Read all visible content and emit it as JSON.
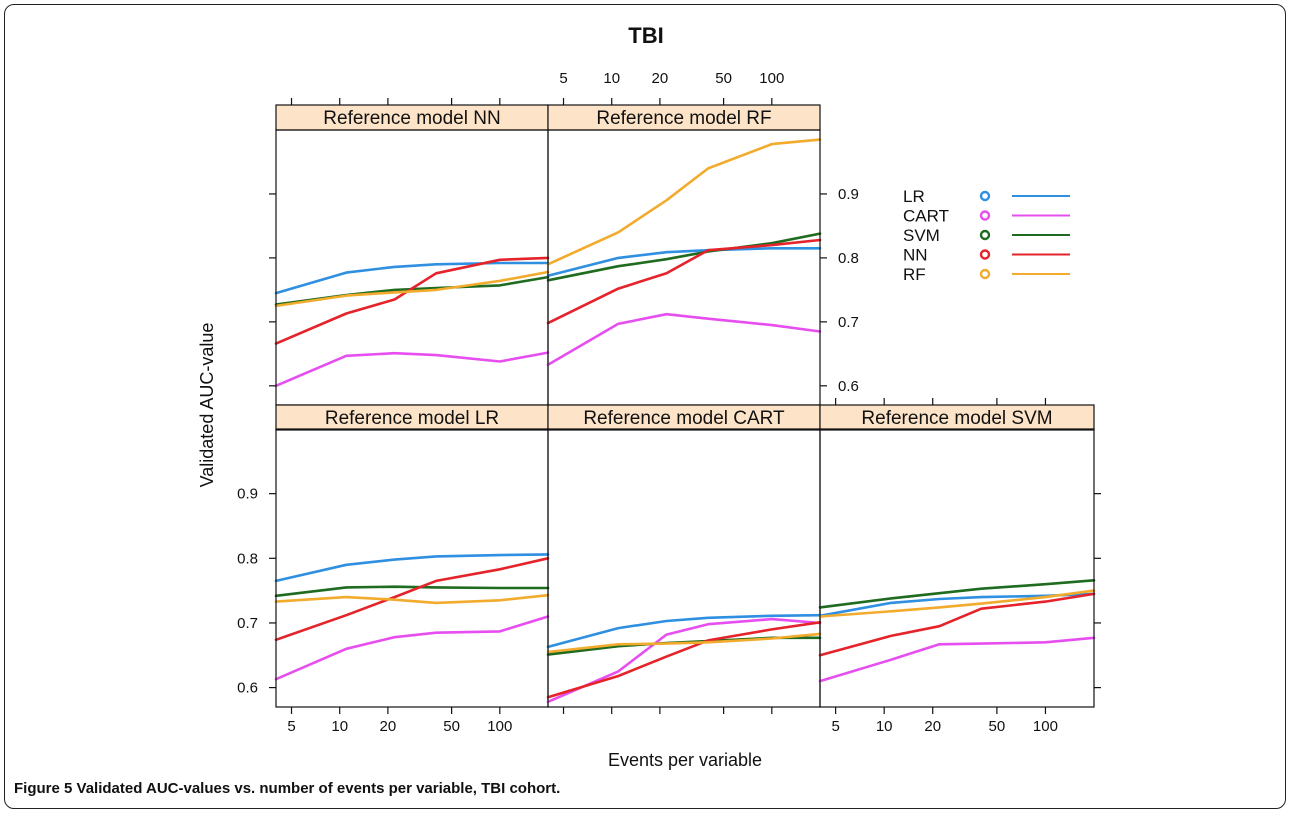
{
  "caption": {
    "label": "Figure 5",
    "text": "Validated AUC-values vs. number of events per variable, TBI cohort."
  },
  "colors": {
    "strip": "#fde4c9",
    "LR": "#2f8fe0",
    "CART": "#e64ef0",
    "SVM": "#1f6b1f",
    "NN": "#e5232a",
    "RF": "#f2ab2c"
  },
  "chart_data": {
    "type": "line",
    "title": "TBI",
    "xlabel": "Events per variable",
    "ylabel": "Validated AUC-value",
    "x_scale": "log",
    "xlim": [
      4,
      200
    ],
    "ylim": [
      0.57,
      1.0
    ],
    "x_ticks": [
      5,
      10,
      20,
      50,
      100
    ],
    "y_ticks": [
      0.6,
      0.7,
      0.8,
      0.9
    ],
    "x": [
      4,
      11,
      22,
      40,
      100,
      200
    ],
    "legend": {
      "placement": "right",
      "entries": [
        "LR",
        "CART",
        "SVM",
        "NN",
        "RF"
      ]
    },
    "panels": [
      {
        "title": "Reference model NN",
        "series": [
          {
            "name": "LR",
            "values": [
              0.745,
              0.777,
              0.786,
              0.79,
              0.792,
              0.792
            ]
          },
          {
            "name": "CART",
            "values": [
              0.6,
              0.647,
              0.651,
              0.648,
              0.638,
              0.652
            ]
          },
          {
            "name": "SVM",
            "values": [
              0.727,
              0.742,
              0.75,
              0.753,
              0.757,
              0.77
            ]
          },
          {
            "name": "NN",
            "values": [
              0.666,
              0.713,
              0.735,
              0.776,
              0.797,
              0.8
            ]
          },
          {
            "name": "RF",
            "values": [
              0.725,
              0.741,
              0.746,
              0.75,
              0.764,
              0.778
            ]
          }
        ]
      },
      {
        "title": "Reference model RF",
        "series": [
          {
            "name": "LR",
            "values": [
              0.772,
              0.8,
              0.809,
              0.812,
              0.815,
              0.815
            ]
          },
          {
            "name": "CART",
            "values": [
              0.633,
              0.697,
              0.712,
              0.705,
              0.695,
              0.685
            ]
          },
          {
            "name": "SVM",
            "values": [
              0.765,
              0.787,
              0.798,
              0.81,
              0.823,
              0.838
            ]
          },
          {
            "name": "NN",
            "values": [
              0.698,
              0.752,
              0.776,
              0.812,
              0.82,
              0.828
            ]
          },
          {
            "name": "RF",
            "values": [
              0.79,
              0.84,
              0.89,
              0.94,
              0.978,
              0.985
            ]
          }
        ]
      },
      {
        "title": "Reference model LR",
        "series": [
          {
            "name": "LR",
            "values": [
              0.765,
              0.79,
              0.798,
              0.803,
              0.805,
              0.806
            ]
          },
          {
            "name": "CART",
            "values": [
              0.613,
              0.66,
              0.678,
              0.685,
              0.687,
              0.71
            ]
          },
          {
            "name": "SVM",
            "values": [
              0.742,
              0.755,
              0.756,
              0.755,
              0.754,
              0.754
            ]
          },
          {
            "name": "NN",
            "values": [
              0.674,
              0.712,
              0.74,
              0.765,
              0.783,
              0.8
            ]
          },
          {
            "name": "RF",
            "values": [
              0.733,
              0.74,
              0.736,
              0.731,
              0.735,
              0.743
            ]
          }
        ]
      },
      {
        "title": "Reference model CART",
        "series": [
          {
            "name": "LR",
            "values": [
              0.663,
              0.692,
              0.703,
              0.708,
              0.711,
              0.712
            ]
          },
          {
            "name": "CART",
            "values": [
              0.578,
              0.625,
              0.682,
              0.698,
              0.706,
              0.7
            ]
          },
          {
            "name": "SVM",
            "values": [
              0.651,
              0.664,
              0.669,
              0.672,
              0.677,
              0.677
            ]
          },
          {
            "name": "NN",
            "values": [
              0.585,
              0.618,
              0.648,
              0.673,
              0.69,
              0.701
            ]
          },
          {
            "name": "RF",
            "values": [
              0.655,
              0.667,
              0.668,
              0.67,
              0.676,
              0.683
            ]
          }
        ]
      },
      {
        "title": "Reference model SVM",
        "series": [
          {
            "name": "LR",
            "values": [
              0.711,
              0.731,
              0.737,
              0.74,
              0.742,
              0.745
            ]
          },
          {
            "name": "CART",
            "values": [
              0.61,
              0.643,
              0.667,
              0.668,
              0.67,
              0.677
            ]
          },
          {
            "name": "SVM",
            "values": [
              0.724,
              0.738,
              0.746,
              0.753,
              0.76,
              0.766
            ]
          },
          {
            "name": "NN",
            "values": [
              0.65,
              0.68,
              0.695,
              0.722,
              0.733,
              0.745
            ]
          },
          {
            "name": "RF",
            "values": [
              0.71,
              0.718,
              0.724,
              0.73,
              0.74,
              0.75
            ]
          }
        ]
      }
    ]
  }
}
